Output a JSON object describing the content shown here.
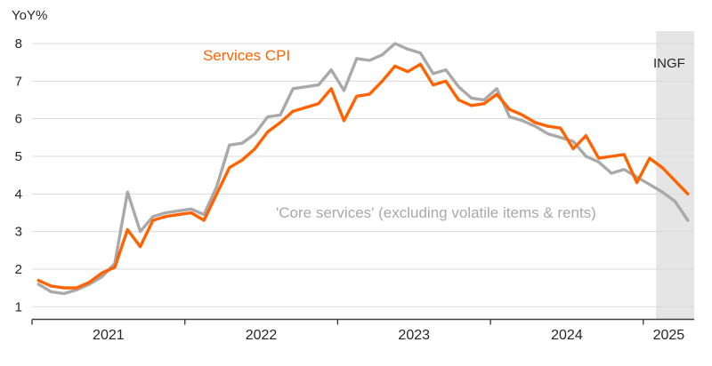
{
  "chart": {
    "y_axis_title": "YoY%",
    "forecast_label": "INGF",
    "colors": {
      "services": "#FF6200",
      "core": "#A9A9A9",
      "core_label_text": "#A9A9A9",
      "forecast_band": "#E5E5E5",
      "gridline": "#D9D9D9",
      "axis": "#404040",
      "text": "#262626"
    }
  },
  "chart_data": {
    "type": "line",
    "title": "",
    "ylabel": "YoY%",
    "xlabel": "",
    "ylim": [
      1,
      8
    ],
    "y_ticks": [
      1,
      2,
      3,
      4,
      5,
      6,
      7,
      8
    ],
    "grid": true,
    "x_tick_labels": [
      "2021",
      "2022",
      "2023",
      "2024",
      "2025"
    ],
    "forecast_start": "2025-02",
    "x": [
      "2021-01",
      "2021-02",
      "2021-03",
      "2021-04",
      "2021-05",
      "2021-06",
      "2021-07",
      "2021-08",
      "2021-09",
      "2021-10",
      "2021-11",
      "2021-12",
      "2022-01",
      "2022-02",
      "2022-03",
      "2022-04",
      "2022-05",
      "2022-06",
      "2022-07",
      "2022-08",
      "2022-09",
      "2022-10",
      "2022-11",
      "2022-12",
      "2023-01",
      "2023-02",
      "2023-03",
      "2023-04",
      "2023-05",
      "2023-06",
      "2023-07",
      "2023-08",
      "2023-09",
      "2023-10",
      "2023-11",
      "2023-12",
      "2024-01",
      "2024-02",
      "2024-03",
      "2024-04",
      "2024-05",
      "2024-06",
      "2024-07",
      "2024-08",
      "2024-09",
      "2024-10",
      "2024-11",
      "2024-12",
      "2025-01",
      "2025-02",
      "2025-03",
      "2025-04"
    ],
    "series": [
      {
        "name": "Services CPI",
        "color": "#FF6200",
        "values": [
          1.7,
          1.55,
          1.5,
          1.5,
          1.65,
          1.9,
          2.05,
          3.05,
          2.6,
          3.3,
          3.4,
          3.45,
          3.5,
          3.3,
          4.0,
          4.7,
          4.9,
          5.2,
          5.65,
          5.9,
          6.2,
          6.3,
          6.4,
          6.8,
          5.95,
          6.6,
          6.65,
          7.0,
          7.4,
          7.25,
          7.45,
          6.9,
          7.0,
          6.5,
          6.35,
          6.4,
          6.65,
          6.25,
          6.1,
          5.9,
          5.8,
          5.75,
          5.2,
          5.55,
          4.95,
          5.0,
          5.05,
          4.3,
          4.95,
          4.7,
          4.35,
          4.0
        ]
      },
      {
        "name": "'Core services' (excluding volatile items & rents)",
        "color": "#A9A9A9",
        "values": [
          1.6,
          1.4,
          1.35,
          1.45,
          1.6,
          1.8,
          2.15,
          4.05,
          3.0,
          3.4,
          3.5,
          3.55,
          3.6,
          3.45,
          4.2,
          5.3,
          5.35,
          5.6,
          6.05,
          6.1,
          6.8,
          6.85,
          6.9,
          7.3,
          6.75,
          7.6,
          7.55,
          7.7,
          8.0,
          7.85,
          7.75,
          7.2,
          7.3,
          6.85,
          6.55,
          6.5,
          6.8,
          6.05,
          5.95,
          5.8,
          5.6,
          5.5,
          5.4,
          5.0,
          4.85,
          4.55,
          4.65,
          4.45,
          4.25,
          4.05,
          3.8,
          3.3
        ]
      }
    ]
  }
}
